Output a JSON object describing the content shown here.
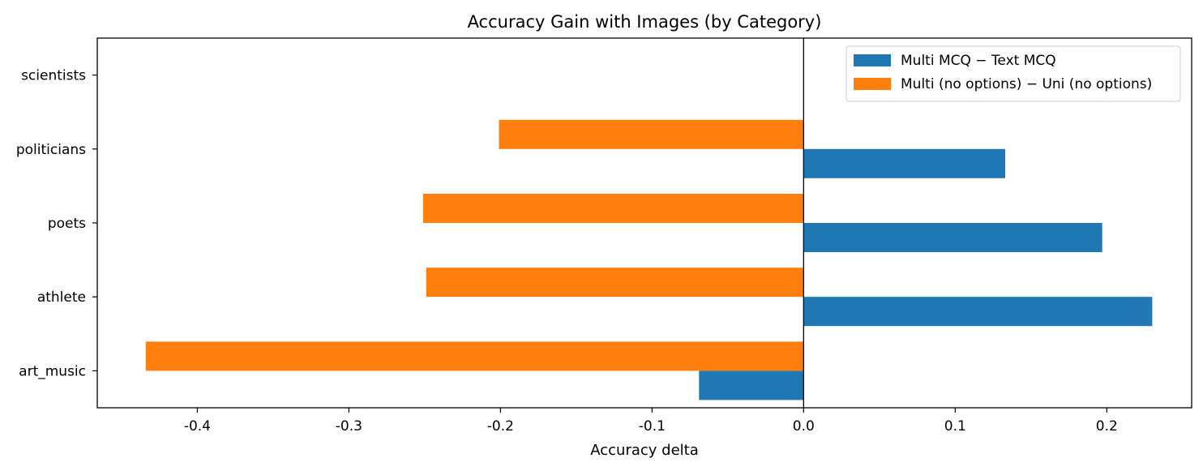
{
  "chart_data": {
    "type": "bar",
    "orientation": "horizontal",
    "title": "Accuracy Gain with Images (by Category)",
    "xlabel": "Accuracy delta",
    "ylabel": "",
    "categories": [
      "scientists",
      "politicians",
      "poets",
      "athlete",
      "art_music"
    ],
    "series": [
      {
        "name": "Multi MCQ − Text MCQ",
        "color": "#1f77b4",
        "values": [
          0.0,
          0.133,
          0.197,
          0.23,
          -0.069
        ]
      },
      {
        "name": "Multi (no options) − Uni (no options)",
        "color": "#ff7f0e",
        "values": [
          0.0,
          -0.201,
          -0.251,
          -0.249,
          -0.434
        ]
      }
    ],
    "xlim": [
      -0.466,
      0.256
    ],
    "xticks": [
      -0.4,
      -0.3,
      -0.2,
      -0.1,
      0.0,
      0.1,
      0.2
    ],
    "xtick_labels": [
      "-0.4",
      "-0.3",
      "-0.2",
      "-0.1",
      "0.0",
      "0.1",
      "0.2"
    ],
    "zero_line": true,
    "grid": false,
    "legend_position": "top-right"
  }
}
